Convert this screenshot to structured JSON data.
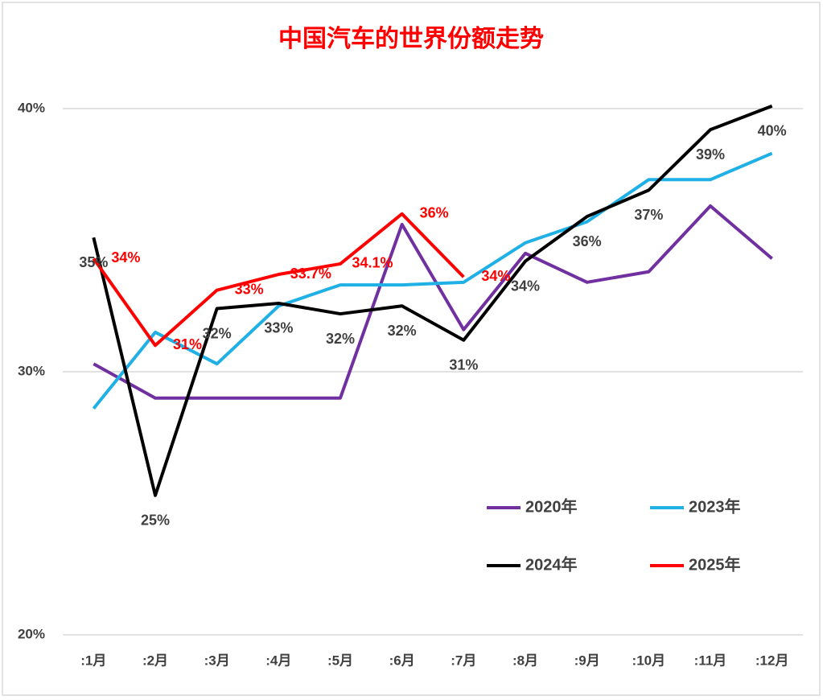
{
  "chart_data": {
    "type": "line",
    "title": "中国汽车的世界份额走势",
    "categories": [
      ":1月",
      ":2月",
      ":3月",
      ":4月",
      ":5月",
      ":6月",
      ":7月",
      ":8月",
      ":9月",
      ":10月",
      ":11月",
      ":12月"
    ],
    "ylim": [
      20,
      40
    ],
    "yticks": [
      {
        "value": 20,
        "label": "20%"
      },
      {
        "value": 30,
        "label": "30%"
      },
      {
        "value": 40,
        "label": "40%"
      }
    ],
    "grid": true,
    "legend": "lower right",
    "series": [
      {
        "name": "2020年",
        "color": "#7030a0",
        "values": [
          30.3,
          29.0,
          29.0,
          29.0,
          29.0,
          35.6,
          31.6,
          34.5,
          33.4,
          33.8,
          36.3,
          34.3
        ]
      },
      {
        "name": "2023年",
        "color": "#1fb0e6",
        "values": [
          28.6,
          31.5,
          30.3,
          32.5,
          33.3,
          33.3,
          33.4,
          34.9,
          35.7,
          37.3,
          37.3,
          38.3
        ]
      },
      {
        "name": "2024年",
        "color": "#000000",
        "values": [
          35.1,
          25.3,
          32.4,
          32.6,
          32.2,
          32.5,
          31.2,
          34.2,
          35.9,
          36.9,
          39.2,
          40.1
        ],
        "value_labels": [
          "35%",
          "25%",
          "32%",
          "33%",
          "32%",
          "32%",
          "31%",
          "34%",
          "36%",
          "37%",
          "39%",
          "40%"
        ]
      },
      {
        "name": "2025年",
        "color": "#ff0000",
        "values": [
          34.3,
          31.0,
          33.1,
          33.7,
          34.1,
          36.0,
          33.6,
          null,
          null,
          null,
          null,
          null
        ],
        "value_labels": [
          "34%",
          "31%",
          "33%",
          "33.7%",
          "34.1%",
          "36%",
          "34%",
          null,
          null,
          null,
          null,
          null
        ]
      }
    ]
  }
}
